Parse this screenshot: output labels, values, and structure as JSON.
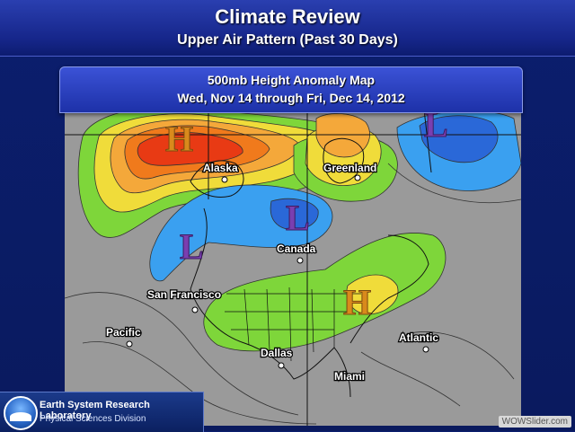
{
  "header": {
    "title": "Climate Review",
    "subtitle": "Upper Air Pattern (Past 30 Days)"
  },
  "map": {
    "caption_line1": "500mb Height Anomaly Map",
    "caption_line2": "Wed, Nov 14 through Fri, Dec 14, 2012",
    "centers": [
      {
        "symbol": "H",
        "color": "#d98a1c",
        "region": "Bering Sea / Alaska"
      },
      {
        "symbol": "L",
        "color": "#7a3fb0",
        "region": "North Atlantic"
      },
      {
        "symbol": "L",
        "color": "#7a3fb0",
        "region": "Canada"
      },
      {
        "symbol": "L",
        "color": "#7a3fb0",
        "region": "Northeast Pacific"
      },
      {
        "symbol": "H",
        "color": "#d98a1c",
        "region": "Northeast US"
      }
    ],
    "places": {
      "alaska": "Alaska",
      "greenland": "Greenland",
      "canada": "Canada",
      "san_francisco": "San Francisco",
      "pacific": "Pacific",
      "dallas": "Dallas",
      "atlantic": "Atlantic",
      "miami": "Miami"
    },
    "anomaly_colors": {
      "strong_positive": "#e83a14",
      "positive": "#f07a1c",
      "moderate_positive": "#f4a83a",
      "weak_positive": "#f0dc3a",
      "slight_positive": "#7ed63a",
      "near_zero": "#9a9a9a",
      "weak_negative": "#3aa0f0",
      "negative": "#2a68d8"
    }
  },
  "logo": {
    "name": "Earth System Research Laboratory",
    "division": "Physical Sciences Division"
  },
  "watermark": "WOWSlider.com"
}
